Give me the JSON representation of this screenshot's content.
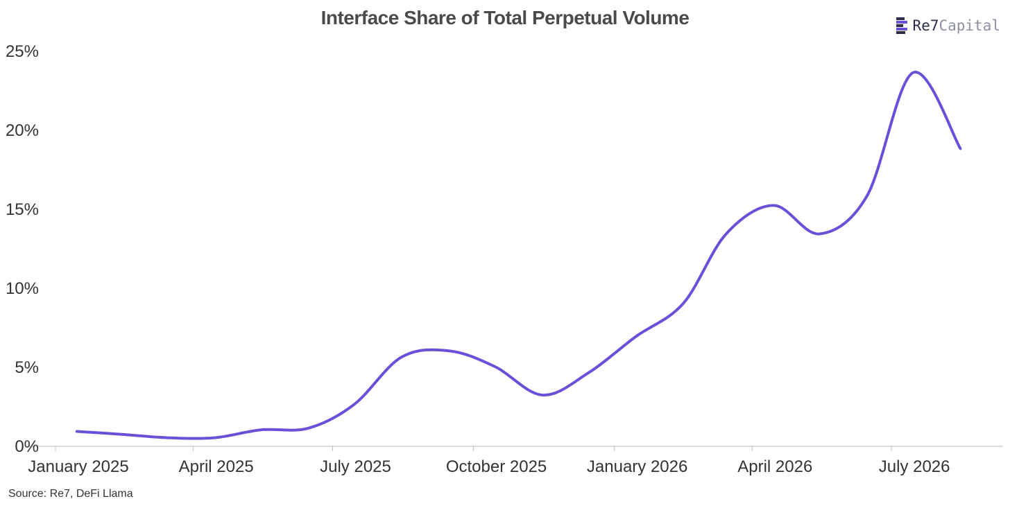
{
  "chart_data": {
    "type": "line",
    "title": "Interface Share of Total Perpetual Volume",
    "source": "Source: Re7, DeFi Llama",
    "brand": {
      "strong": "Re7",
      "light": "Capital",
      "color": "#2b2d4a",
      "mark_colors": [
        "#2b2d4a",
        "#6b4fd8",
        "#2b2d4a",
        "#6b4fd8",
        "#2b2d4a"
      ]
    },
    "xlabel": "",
    "ylabel": "",
    "line_color": "#6b4fd8",
    "grid": false,
    "ylim": [
      0,
      25
    ],
    "y_ticks": [
      0,
      5,
      10,
      15,
      20,
      25
    ],
    "y_tick_labels": [
      "0%",
      "5%",
      "10%",
      "15%",
      "20%",
      "25%"
    ],
    "x_range": [
      "2025-01-01",
      "2026-09-01"
    ],
    "x_ticks": [
      "2025-01-01",
      "2025-04-01",
      "2025-07-01",
      "2025-10-01",
      "2026-01-01",
      "2026-04-01",
      "2026-07-01"
    ],
    "x_tick_labels": [
      "January 2025",
      "April 2025",
      "July 2025",
      "October 2025",
      "January 2026",
      "April 2026",
      "July 2026"
    ],
    "series": [
      {
        "x": [
          "2025-01-15",
          "2025-02-15",
          "2025-03-15",
          "2025-04-15",
          "2025-05-15",
          "2025-06-15",
          "2025-07-15",
          "2025-08-15",
          "2025-09-15",
          "2025-10-15",
          "2025-11-15",
          "2025-12-15",
          "2026-01-15",
          "2026-02-15",
          "2026-03-15",
          "2026-04-15",
          "2026-05-15",
          "2026-06-15",
          "2026-07-15",
          "2026-08-15"
        ],
        "y": [
          0.9,
          0.7,
          0.5,
          0.5,
          1.0,
          1.1,
          2.6,
          5.6,
          6.0,
          5.0,
          3.2,
          4.6,
          6.9,
          9.0,
          13.4,
          15.2,
          13.4,
          15.8,
          23.6,
          18.8
        ]
      }
    ]
  }
}
